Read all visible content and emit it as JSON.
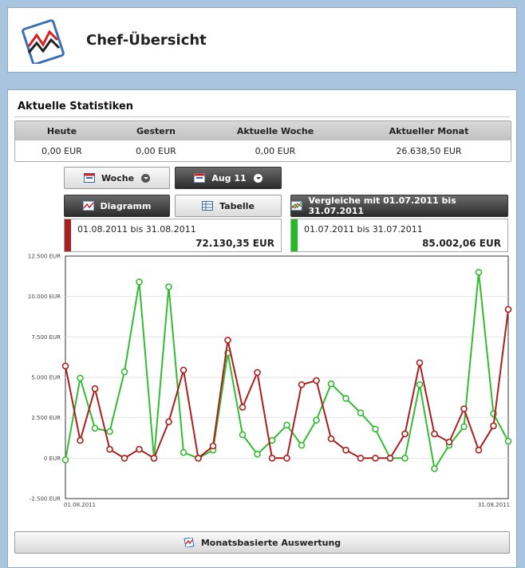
{
  "header": {
    "title": "Chef-Übersicht",
    "logo_icon": "chart-logo-icon"
  },
  "stats": {
    "title": "Aktuelle Statistiken",
    "columns": [
      "Heute",
      "Gestern",
      "Aktuelle Woche",
      "Aktueller Monat"
    ],
    "values": [
      "0,00 EUR",
      "0,00 EUR",
      "0,00 EUR",
      "26.638,50 EUR"
    ]
  },
  "controls": {
    "woche": {
      "label": "Woche",
      "icon": "calendar-week-icon"
    },
    "month": {
      "label": "Aug 11",
      "icon": "calendar-month-icon"
    },
    "diagramm": {
      "label": "Diagramm",
      "icon": "chart-icon"
    },
    "tabelle": {
      "label": "Tabelle",
      "icon": "table-icon"
    },
    "vergleiche": {
      "label": "Vergleiche mit 01.07.2011 bis 31.07.2011",
      "icon": "compare-icon"
    }
  },
  "periods": [
    {
      "range": "01.08.2011 bis 31.08.2011",
      "total": "72.130,35 EUR",
      "color": "#aa1e1e"
    },
    {
      "range": "01.07.2011 bis 31.07.2011",
      "total": "85.002,06 EUR",
      "color": "#22bb22"
    }
  ],
  "chart_data": {
    "type": "line",
    "title": "",
    "xlabel": "",
    "ylabel": "",
    "ylim": [
      -2500,
      12500
    ],
    "yticks": [
      12500,
      10000,
      7500,
      5000,
      2500,
      0,
      -2500
    ],
    "ytick_labels": [
      "12.500 EUR",
      "10.000 EUR",
      "7.500 EUR",
      "5.000 EUR",
      "2.500 EUR",
      "0 EUR",
      "-2.500 EUR"
    ],
    "xtick_labels": [
      "01.08.2011",
      "31.08.2011"
    ],
    "grid": true,
    "x": [
      1,
      2,
      3,
      4,
      5,
      6,
      7,
      8,
      9,
      10,
      11,
      12,
      13,
      14,
      15,
      16,
      17,
      18,
      19,
      20,
      21,
      22,
      23,
      24,
      25,
      26,
      27,
      28,
      29,
      30,
      31
    ],
    "series": [
      {
        "color": "#aa1e1e",
        "values": [
          5700,
          1100,
          4300,
          550,
          0,
          550,
          0,
          2250,
          5450,
          0,
          750,
          7300,
          3150,
          5300,
          0,
          0,
          4550,
          4800,
          1200,
          500,
          0,
          0,
          0,
          1500,
          5900,
          1500,
          1000,
          3050,
          500,
          2000,
          9200
        ]
      },
      {
        "color": "#33bb33",
        "values": [
          -100,
          4950,
          1850,
          1650,
          5350,
          10900,
          0,
          10600,
          350,
          0,
          500,
          6500,
          1450,
          250,
          1100,
          2050,
          800,
          2350,
          4600,
          3700,
          2800,
          1800,
          0,
          0,
          4550,
          -650,
          800,
          1950,
          11500,
          2750,
          1050
        ]
      }
    ]
  },
  "footer": {
    "label": "Monatsbasierte Auswertung",
    "icon": "report-icon"
  }
}
